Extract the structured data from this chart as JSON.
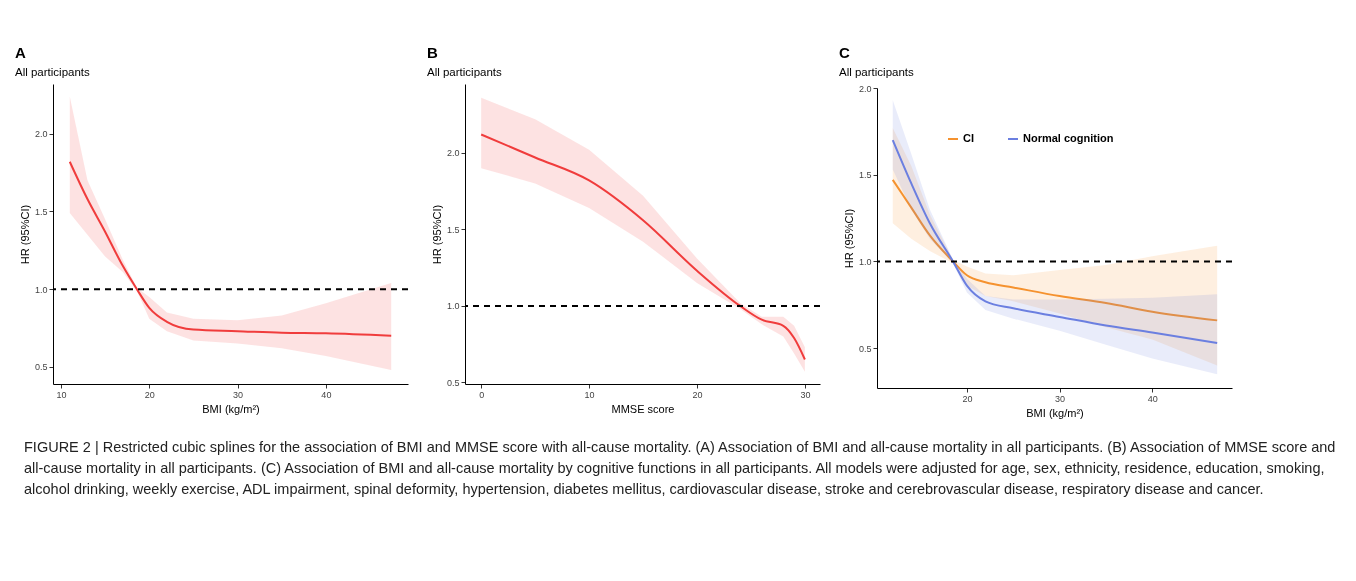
{
  "chart_data": [
    {
      "type": "line",
      "title": "A",
      "subtitle": "All participants",
      "xlabel": "BMI (kg/m²)",
      "ylabel": "HR (95%CI)",
      "xlim": [
        9.1,
        49.3
      ],
      "xticks": [
        10,
        20,
        30,
        40
      ],
      "ylim": [
        0.39,
        2.32
      ],
      "yticks": [
        {
          "value": 0.5,
          "label": "0.5"
        },
        {
          "value": 1.0,
          "label": "1.0"
        },
        {
          "value": 1.5,
          "label": "1.5"
        },
        {
          "value": 2.0,
          "label": "2.0"
        }
      ],
      "grid": false,
      "legend": false,
      "series": [
        {
          "color": "#f03c3c",
          "x": [
            11,
            13,
            15,
            17,
            18.6,
            20,
            22,
            25,
            30,
            35,
            40,
            47.4
          ],
          "values": [
            1.82,
            1.58,
            1.37,
            1.15,
            1.0,
            0.88,
            0.79,
            0.74,
            0.73,
            0.72,
            0.716,
            0.7
          ],
          "lower": [
            1.49,
            1.35,
            1.21,
            1.11,
            0.99,
            0.81,
            0.73,
            0.67,
            0.65,
            0.62,
            0.57,
            0.48
          ],
          "upper": [
            2.24,
            1.7,
            1.45,
            1.19,
            1.01,
            0.95,
            0.85,
            0.81,
            0.8,
            0.83,
            0.91,
            1.04
          ]
        }
      ],
      "ref_lines": [
        {
          "axis": "y",
          "value": 1.0,
          "color": "#000000",
          "line_style": "dashed"
        }
      ]
    },
    {
      "type": "line",
      "title": "B",
      "subtitle": "All participants",
      "xlabel": "MMSE score",
      "ylabel": "HR (95%CI)",
      "xlim": [
        -1.5,
        31.4
      ],
      "xticks": [
        0,
        10,
        20,
        30
      ],
      "ylim": [
        0.49,
        2.45
      ],
      "yticks": [
        {
          "value": 0.5,
          "label": "0.5"
        },
        {
          "value": 1.0,
          "label": "1.0"
        },
        {
          "value": 1.5,
          "label": "1.5"
        },
        {
          "value": 2.0,
          "label": "2.0"
        }
      ],
      "grid": false,
      "legend": false,
      "series": [
        {
          "color": "#f03c3c",
          "x": [
            0,
            5,
            10,
            15,
            20,
            24,
            26,
            28,
            29,
            30
          ],
          "values": [
            2.12,
            1.97,
            1.82,
            1.56,
            1.23,
            1.0,
            0.91,
            0.87,
            0.79,
            0.65
          ],
          "lower": [
            1.9,
            1.8,
            1.64,
            1.42,
            1.15,
            0.98,
            0.88,
            0.8,
            0.69,
            0.57
          ],
          "upper": [
            2.36,
            2.22,
            2.02,
            1.72,
            1.31,
            1.02,
            0.93,
            0.93,
            0.87,
            0.73
          ]
        }
      ],
      "ref_lines": [
        {
          "axis": "y",
          "value": 1.0,
          "color": "#000000",
          "line_style": "dashed"
        }
      ]
    },
    {
      "type": "line",
      "title": "C",
      "subtitle": "All participants",
      "xlabel": "BMI (kg/m²)",
      "ylabel": "HR (95%CI)",
      "xlim": [
        10.3,
        48.6
      ],
      "xticks": [
        20,
        30,
        40
      ],
      "ylim": [
        0.27,
        2.0
      ],
      "yticks": [
        {
          "value": 0.5,
          "label": "0.5"
        },
        {
          "value": 1.0,
          "label": "1.0"
        },
        {
          "value": 1.5,
          "label": "1.5"
        },
        {
          "value": 2.0,
          "label": "2.0"
        }
      ],
      "grid": false,
      "legend": "top",
      "series": [
        {
          "name": "CI",
          "color": "#f5922f",
          "x": [
            12,
            14,
            16,
            18.5,
            20,
            22,
            25,
            30,
            35,
            40,
            47
          ],
          "values": [
            1.47,
            1.31,
            1.15,
            1.0,
            0.92,
            0.88,
            0.85,
            0.8,
            0.76,
            0.71,
            0.66
          ],
          "lower": [
            1.22,
            1.13,
            1.06,
            0.99,
            0.86,
            0.8,
            0.77,
            0.7,
            0.62,
            0.55,
            0.4
          ],
          "upper": [
            1.77,
            1.55,
            1.27,
            1.01,
            0.97,
            0.93,
            0.92,
            0.95,
            0.98,
            1.03,
            1.09
          ]
        },
        {
          "name": "Normal cognition",
          "color": "#6b7fe0",
          "x": [
            12,
            14,
            16,
            18.5,
            20,
            22,
            25,
            30,
            35,
            40,
            47
          ],
          "values": [
            1.7,
            1.45,
            1.22,
            1.0,
            0.86,
            0.77,
            0.73,
            0.68,
            0.63,
            0.59,
            0.53
          ],
          "lower": [
            1.53,
            1.3,
            1.13,
            0.99,
            0.82,
            0.72,
            0.67,
            0.6,
            0.52,
            0.44,
            0.35
          ],
          "upper": [
            1.93,
            1.62,
            1.3,
            1.01,
            0.9,
            0.8,
            0.78,
            0.78,
            0.785,
            0.79,
            0.81
          ]
        }
      ],
      "ref_lines": [
        {
          "axis": "y",
          "value": 1.0,
          "color": "#000000",
          "line_style": "dashed"
        }
      ],
      "annotations": [
        "FIGURE 2 | Restricted cubic splines for the association of BMI and MMSE score with all-cause mortality. (A) Association of BMI and all-cause mortality in all participants. (B) Association of MMSE score and all-cause mortality in all participants. (C) Association of BMI and all-cause mortality by cognitive functions in all participants. All models were adjusted for age, sex, ethnicity, residence, education, smoking, alcohol drinking, weekly exercise, ADL impairment, spinal deformity, hypertension, diabetes mellitus, cardiovascular disease, stroke and cerebrovascular disease, respiratory disease and cancer."
      ]
    }
  ]
}
